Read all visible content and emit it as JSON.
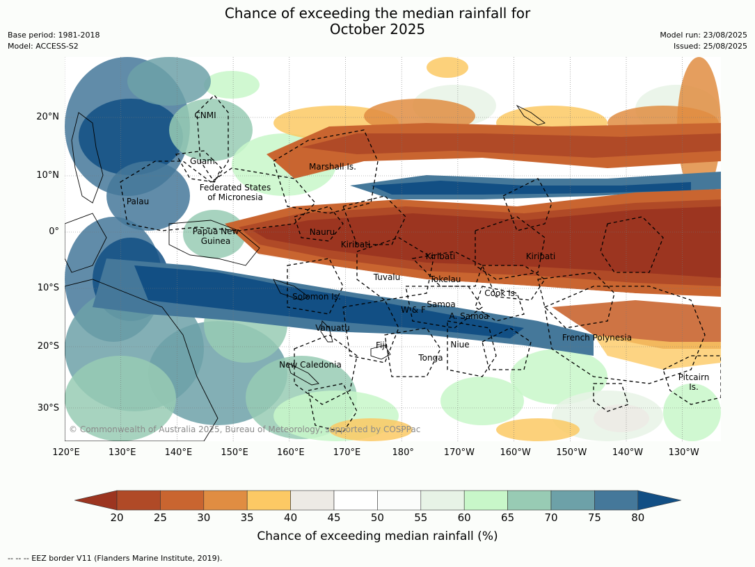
{
  "title_line1": "Chance of exceeding the median rainfall for",
  "title_line2": "October 2025",
  "base_period": "Base period: 1981-2018",
  "model": "Model: ACCESS-S2",
  "model_run": "Model run: 23/08/2025",
  "issued": "Issued: 25/08/2025",
  "lat_labels": [
    "20°N",
    "10°N",
    "0°",
    "10°S",
    "20°S",
    "30°S"
  ],
  "lon_labels": [
    "120°E",
    "130°E",
    "140°E",
    "150°E",
    "160°E",
    "170°E",
    "180°",
    "170°W",
    "160°W",
    "150°W",
    "140°W",
    "130°W"
  ],
  "regions": [
    {
      "label": "CNMI"
    },
    {
      "label": "Guam"
    },
    {
      "label": "Marshall Is."
    },
    {
      "label": "Federated States\nof Micronesia"
    },
    {
      "label": "Palau"
    },
    {
      "label": "Papua New\nGuinea"
    },
    {
      "label": "Nauru"
    },
    {
      "label": "Kiribati"
    },
    {
      "label": "Kiribati"
    },
    {
      "label": "Kiribati"
    },
    {
      "label": "Tuvalu"
    },
    {
      "label": "Tokelau"
    },
    {
      "label": "Cook Is."
    },
    {
      "label": "Solomon Is."
    },
    {
      "label": "Samoa"
    },
    {
      "label": "W & F"
    },
    {
      "label": "A. Samoa"
    },
    {
      "label": "Vanuatu"
    },
    {
      "label": "Fiji"
    },
    {
      "label": "Niue"
    },
    {
      "label": "French Polynesia"
    },
    {
      "label": "Tonga"
    },
    {
      "label": "New Caledonia"
    },
    {
      "label": "Pitcairn\nIs."
    }
  ],
  "copyright": "© Commonwealth of Australia 2025, Bureau of Meteorology, supported by COSPPac",
  "colorbar": {
    "ticks": [
      "20",
      "25",
      "30",
      "35",
      "40",
      "45",
      "50",
      "55",
      "60",
      "65",
      "70",
      "75",
      "80"
    ],
    "colors": [
      "#9c3520",
      "#b04a27",
      "#c96530",
      "#e08d42",
      "#fcc964",
      "#edeae5",
      "#ffffff",
      "#fbfcfb",
      "#e7f3e6",
      "#c8f7c9",
      "#98cbb4",
      "#6da1a8",
      "#45789a",
      "#124f84"
    ],
    "label": "Chance of exceeding median rainfall (%)"
  },
  "footer": "--  --  -- EEZ border V11 (Flanders Marine Institute, 2019)."
}
